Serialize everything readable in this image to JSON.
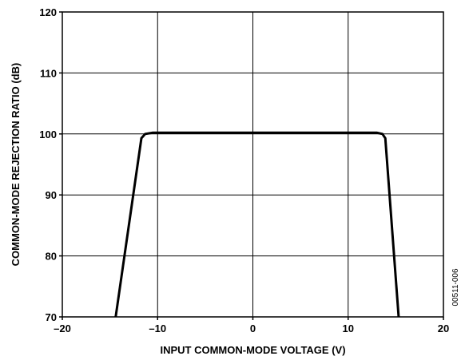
{
  "chart_data": {
    "type": "line",
    "title": "",
    "xlabel": "INPUT COMMON-MODE VOLTAGE (V)",
    "ylabel": "COMMON-MODE REJECTION RATIO (dB)",
    "xlim": [
      -20,
      20
    ],
    "ylim": [
      70,
      120
    ],
    "x_ticks": [
      -20,
      -10,
      0,
      10,
      20
    ],
    "x_tick_labels": [
      "–20",
      "–10",
      "0",
      "10",
      "20"
    ],
    "y_ticks": [
      70,
      80,
      90,
      100,
      110,
      120
    ],
    "y_tick_labels": [
      "70",
      "80",
      "90",
      "100",
      "110",
      "120"
    ],
    "grid": true,
    "legend": "none",
    "series": [
      {
        "x": [
          -14.4,
          -11.7,
          -11.3,
          -10.5,
          13.0,
          13.6,
          13.9,
          15.3
        ],
        "y": [
          70,
          99.3,
          100.0,
          100.2,
          100.2,
          100.0,
          99.3,
          70
        ]
      }
    ],
    "annotation": "00511-006"
  }
}
